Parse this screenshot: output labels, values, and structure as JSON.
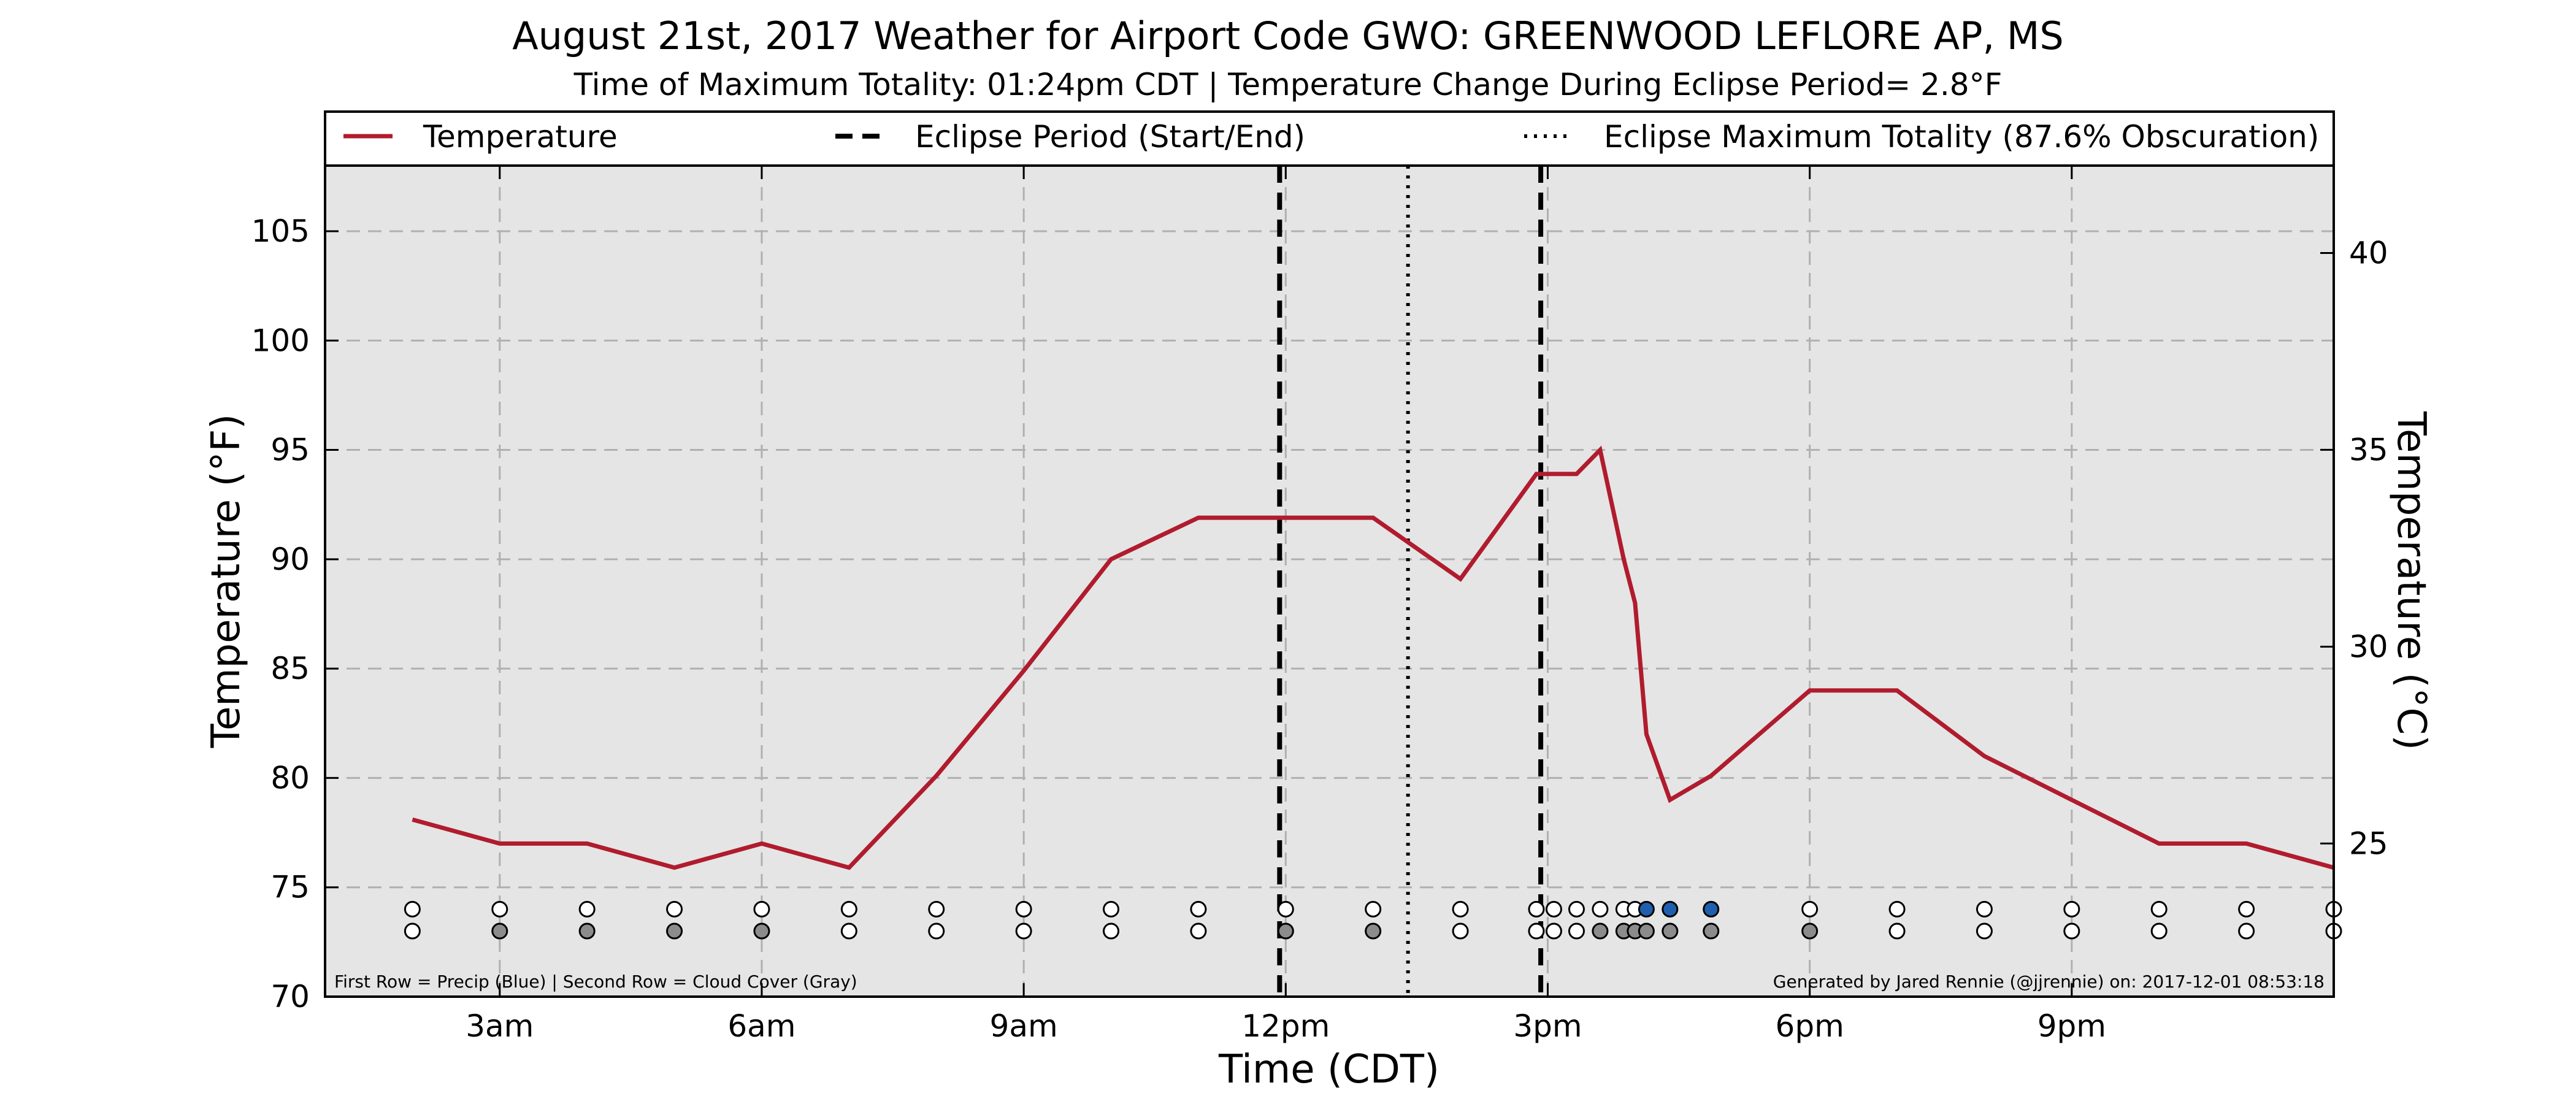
{
  "chart_data": {
    "type": "line",
    "title": "August 21st, 2017 Weather for Airport Code GWO: GREENWOOD LEFLORE AP, MS",
    "subtitle": "Time of Maximum Totality: 01:24pm CDT | Temperature Change During Eclipse Period= 2.8°F",
    "xlabel": "Time (CDT)",
    "ylabel": "Temperature (°F)",
    "y2label": "Temperature (°C)",
    "xlim": [
      1.0,
      24.0
    ],
    "ylim": [
      70,
      108
    ],
    "y2lim": [
      21.11,
      42.22
    ],
    "x_ticks": [
      {
        "value": 3,
        "label": "3am"
      },
      {
        "value": 6,
        "label": "6am"
      },
      {
        "value": 9,
        "label": "9am"
      },
      {
        "value": 12,
        "label": "12pm"
      },
      {
        "value": 15,
        "label": "3pm"
      },
      {
        "value": 18,
        "label": "6pm"
      },
      {
        "value": 21,
        "label": "9pm"
      }
    ],
    "y_ticks": [
      70,
      75,
      80,
      85,
      90,
      95,
      100,
      105
    ],
    "y2_ticks": [
      25,
      30,
      35,
      40
    ],
    "grid": true,
    "legend_position": "top",
    "legend": [
      {
        "label": "Temperature",
        "style": "solid",
        "color": "#b01c2e"
      },
      {
        "label": "Eclipse Period (Start/End)",
        "style": "dashed",
        "color": "#000000"
      },
      {
        "label": "Eclipse Maximum Totality (87.6% Obscuration)",
        "style": "dotted",
        "color": "#000000"
      }
    ],
    "series": [
      {
        "name": "Temperature",
        "color": "#b01c2e",
        "x": [
          2.0,
          3.0,
          4.0,
          5.0,
          6.0,
          7.0,
          8.0,
          9.0,
          10.0,
          11.0,
          12.0,
          13.0,
          14.0,
          14.87,
          15.0,
          15.33,
          15.6,
          15.87,
          16.0,
          16.13,
          16.4,
          16.87,
          18.0,
          19.0,
          20.0,
          21.0,
          22.0,
          23.0,
          24.0
        ],
        "y": [
          78.1,
          77.0,
          77.0,
          75.9,
          77.0,
          75.9,
          80.1,
          84.9,
          90.0,
          91.9,
          91.9,
          91.9,
          89.1,
          93.9,
          93.9,
          93.9,
          95.0,
          90.0,
          88.0,
          82.0,
          79.0,
          80.1,
          84.0,
          84.0,
          81.0,
          79.0,
          77.0,
          77.0,
          75.9
        ]
      }
    ],
    "eclipse_period": {
      "start": 11.93,
      "end": 14.92
    },
    "eclipse_max_totality": 13.4,
    "obs_rows": {
      "precip": {
        "y": 74,
        "x": [
          2.0,
          3.0,
          4.0,
          5.0,
          6.0,
          7.0,
          8.0,
          9.0,
          10.0,
          11.0,
          12.0,
          13.0,
          14.0,
          14.87,
          15.07,
          15.33,
          15.6,
          15.87,
          16.0,
          16.13,
          16.4,
          16.87,
          18.0,
          19.0,
          20.0,
          21.0,
          22.0,
          23.0,
          24.0
        ],
        "state": [
          "none",
          "none",
          "none",
          "none",
          "none",
          "none",
          "none",
          "none",
          "none",
          "none",
          "none",
          "none",
          "none",
          "none",
          "none",
          "none",
          "none",
          "none",
          "none",
          "precip",
          "precip",
          "precip",
          "none",
          "none",
          "none",
          "none",
          "none",
          "none",
          "none"
        ]
      },
      "cloud": {
        "y": 73,
        "x": [
          2.0,
          3.0,
          4.0,
          5.0,
          6.0,
          7.0,
          8.0,
          9.0,
          10.0,
          11.0,
          12.0,
          13.0,
          14.0,
          14.87,
          15.07,
          15.33,
          15.6,
          15.87,
          16.0,
          16.13,
          16.4,
          16.87,
          18.0,
          19.0,
          20.0,
          21.0,
          22.0,
          23.0,
          24.0
        ],
        "state": [
          "clear",
          "cloud",
          "cloud",
          "cloud",
          "cloud",
          "clear",
          "clear",
          "clear",
          "clear",
          "clear",
          "cloud",
          "cloud",
          "clear",
          "clear",
          "clear",
          "clear",
          "cloud",
          "cloud",
          "cloud",
          "cloud",
          "cloud",
          "cloud",
          "cloud",
          "clear",
          "clear",
          "clear",
          "clear",
          "clear",
          "clear"
        ]
      }
    },
    "colors": {
      "plot_bg": "#e5e5e5",
      "precip": "#1f5fae",
      "cloud": "#8c8c8c",
      "empty": "#ffffff"
    },
    "notes": {
      "left": "First Row = Precip (Blue) | Second Row = Cloud Cover (Gray)",
      "right": "Generated by Jared Rennie (@jjrennie) on: 2017-12-01 08:53:18"
    }
  }
}
